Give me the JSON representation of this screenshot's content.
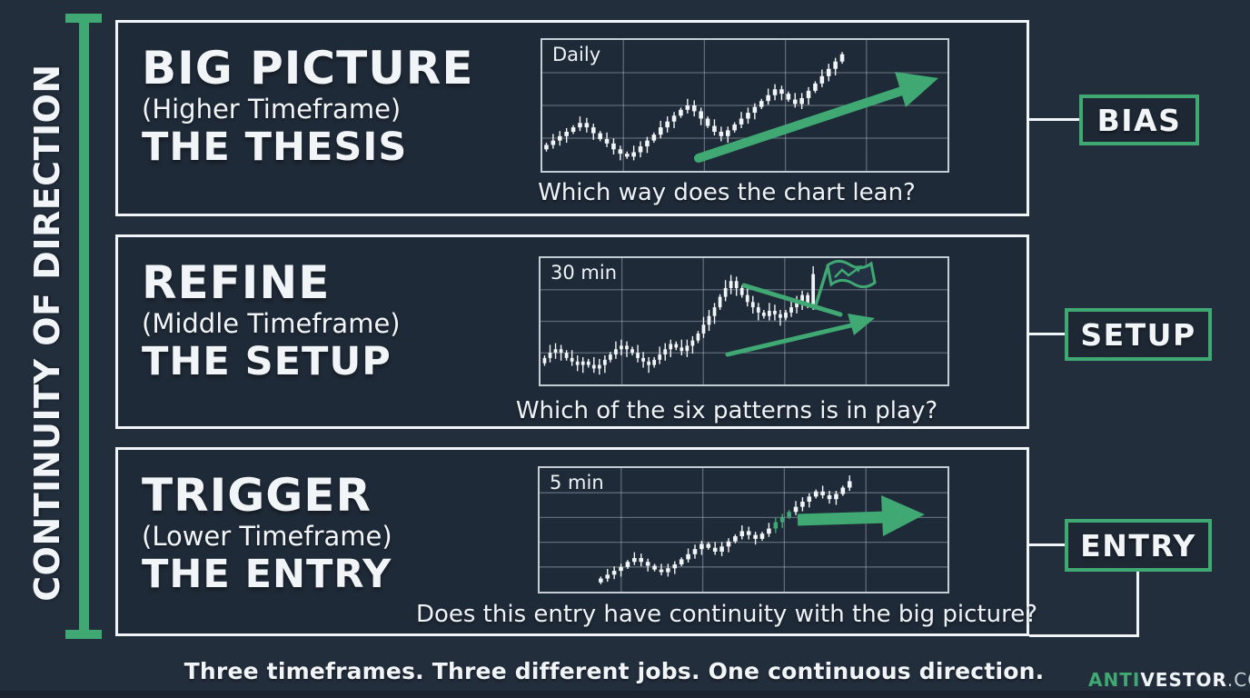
{
  "page": {
    "background": "#232e3d",
    "panel_background": "#1f2a38",
    "chart_background": "#1e2a38",
    "accent_green": "#3fa873",
    "text_white": "#f2f5f7",
    "muted_white": "#c9d2da"
  },
  "left_rail": {
    "label": "CONTINUITY OF DIRECTION"
  },
  "panels": [
    {
      "title": "BIG PICTURE",
      "subtitle": "(Higher Timeframe)",
      "role": "THE THESIS",
      "output_label": "BIAS"
    },
    {
      "title": "REFINE",
      "subtitle": "(Middle Timeframe)",
      "role": "THE SETUP",
      "output_label": "SETUP"
    },
    {
      "title": "TRIGGER",
      "subtitle": "(Lower Timeframe)",
      "role": "THE ENTRY",
      "output_label": "ENTRY"
    }
  ],
  "footer": {
    "tagline": "Three timeframes. Three different jobs. One continuous direction.",
    "brand_part_green": "ANTI",
    "brand_part_bold": "VESTOR",
    "brand_part_suffix": ".COM"
  },
  "chart_data": [
    {
      "type": "candlestick",
      "timeframe": "Daily",
      "question": "Which way does the chart lean?",
      "overlay_icon": "diagonal-uptrend-arrow",
      "grid_cols": 5,
      "grid_rows": 4,
      "x_span": [
        0.01,
        0.74
      ],
      "values": [
        32,
        35,
        38,
        41,
        44,
        47,
        44,
        40,
        36,
        33,
        29,
        26,
        24,
        27,
        31,
        35,
        39,
        44,
        48,
        52,
        56,
        59,
        55,
        50,
        45,
        41,
        38,
        42,
        46,
        50,
        54,
        58,
        62,
        66,
        70,
        67,
        63,
        60,
        64,
        69,
        74,
        79,
        84,
        89,
        94
      ]
    },
    {
      "type": "candlestick",
      "timeframe": "30 min",
      "question": "Which of the six patterns is in play?",
      "overlay_icon": "pennant-trendlines-and-breakout-flag",
      "grid_cols": 5,
      "grid_rows": 4,
      "x_span": [
        0.01,
        0.67
      ],
      "values": [
        30,
        33,
        35,
        33,
        30,
        28,
        26,
        28,
        26,
        24,
        26,
        29,
        32,
        35,
        37,
        35,
        33,
        30,
        28,
        26,
        29,
        32,
        35,
        38,
        36,
        34,
        37,
        40,
        44,
        49,
        54,
        59,
        65,
        70,
        74,
        70,
        66,
        62,
        59,
        56,
        54,
        57,
        55,
        53,
        56,
        59,
        62,
        66,
        60,
        78
      ]
    },
    {
      "type": "candlestick",
      "timeframe": "5 min",
      "question": "Does this entry have continuity with the big picture?",
      "overlay_icon": "horizontal-momentum-arrow",
      "grid_cols": 5,
      "grid_rows": 5,
      "x_span": [
        0.15,
        0.76
      ],
      "green_indices": [
        26,
        27,
        28
      ],
      "values": [
        8,
        11,
        14,
        17,
        21,
        24,
        21,
        18,
        15,
        13,
        16,
        19,
        23,
        27,
        31,
        35,
        32,
        29,
        33,
        37,
        41,
        45,
        42,
        39,
        43,
        47,
        52,
        56,
        60,
        64,
        68,
        72,
        76,
        73,
        70,
        74,
        79,
        84
      ]
    }
  ]
}
